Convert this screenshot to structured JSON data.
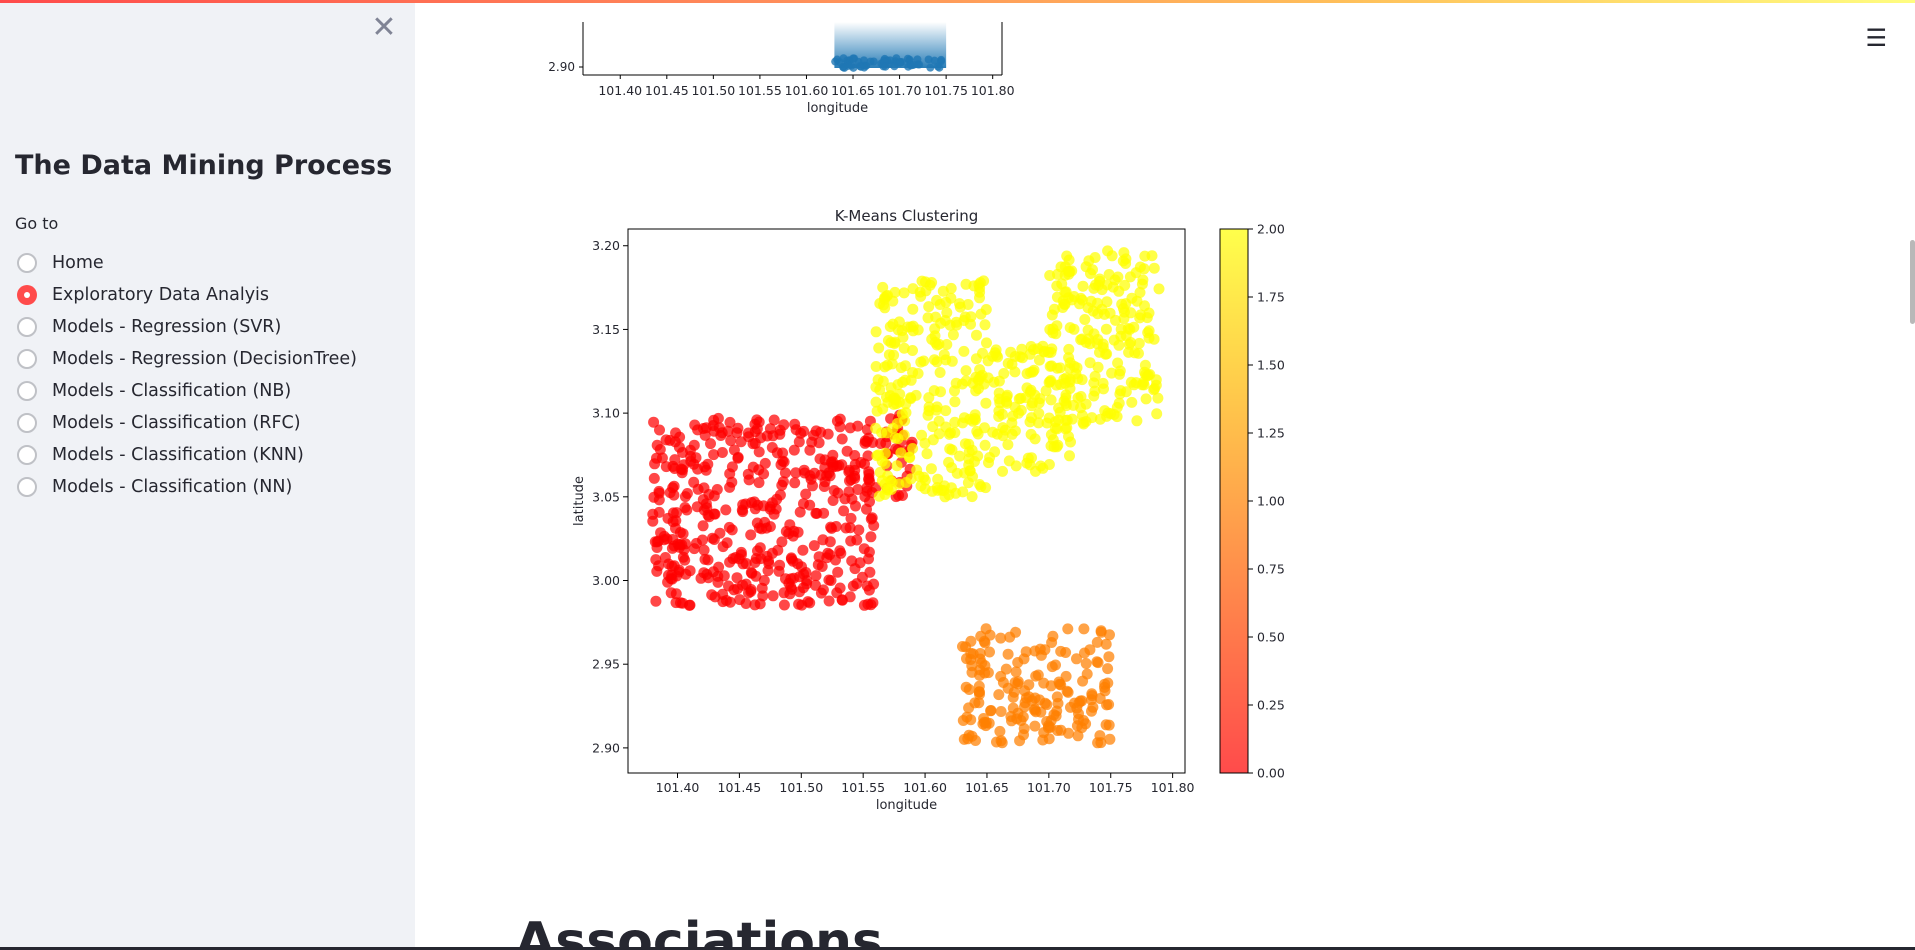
{
  "sidebar": {
    "title": "The Data Mining Process",
    "goto_label": "Go to",
    "options": [
      {
        "label": "Home",
        "selected": false
      },
      {
        "label": "Exploratory Data Analyis",
        "selected": true
      },
      {
        "label": "Models - Regression (SVR)",
        "selected": false
      },
      {
        "label": "Models - Regression (DecisionTree)",
        "selected": false
      },
      {
        "label": "Models - Classification (NB)",
        "selected": false
      },
      {
        "label": "Models - Classification (RFC)",
        "selected": false
      },
      {
        "label": "Models - Classification (KNN)",
        "selected": false
      },
      {
        "label": "Models - Classification (NN)",
        "selected": false
      }
    ],
    "close_icon": "close-icon"
  },
  "header": {
    "menu_icon": "hamburger-menu-icon"
  },
  "colors": {
    "accent": "#ff4b4b",
    "sidebar_bg": "#f0f2f6",
    "text": "#262730"
  },
  "chart_data": [
    {
      "type": "scatter",
      "partial": true,
      "ytick_visible": [
        "2.90"
      ],
      "x_ticks": [
        "101.40",
        "101.45",
        "101.50",
        "101.55",
        "101.60",
        "101.65",
        "101.70",
        "101.75",
        "101.80"
      ],
      "xlabel": "longitude",
      "color": "#1f77b4",
      "clusters": [
        {
          "x_range": [
            101.63,
            101.75
          ],
          "y_range": [
            2.9,
            2.93
          ],
          "color": "#1f77b4"
        }
      ]
    },
    {
      "type": "scatter",
      "title": "K-Means Clustering",
      "xlabel": "longitude",
      "ylabel": "latitude",
      "xlim": [
        101.36,
        101.81
      ],
      "ylim": [
        2.885,
        3.21
      ],
      "x_ticks": [
        "101.40",
        "101.45",
        "101.50",
        "101.55",
        "101.60",
        "101.65",
        "101.70",
        "101.75",
        "101.80"
      ],
      "y_ticks": [
        "2.90",
        "2.95",
        "3.00",
        "3.05",
        "3.10",
        "3.15",
        "3.20"
      ],
      "colormap": "autumn",
      "colorbar": {
        "min": 0.0,
        "max": 2.0,
        "ticks": [
          "0.00",
          "0.25",
          "0.50",
          "0.75",
          "1.00",
          "1.25",
          "1.50",
          "1.75",
          "2.00"
        ]
      },
      "clusters": [
        {
          "label": 0,
          "color": "#ff0000",
          "regions": [
            {
              "x_range": [
                101.38,
                101.56
              ],
              "y_range": [
                2.985,
                3.097
              ]
            },
            {
              "x_range": [
                101.55,
                101.59
              ],
              "y_range": [
                3.05,
                3.1
              ]
            }
          ]
        },
        {
          "label": 1,
          "color": "#ff8000",
          "regions": [
            {
              "x_range": [
                101.63,
                101.75
              ],
              "y_range": [
                2.903,
                2.972
              ]
            }
          ]
        },
        {
          "label": 2,
          "color": "#ffff00",
          "regions": [
            {
              "x_range": [
                101.56,
                101.62
              ],
              "y_range": [
                3.05,
                3.18
              ]
            },
            {
              "x_range": [
                101.62,
                101.65
              ],
              "y_range": [
                3.05,
                3.18
              ]
            },
            {
              "x_range": [
                101.65,
                101.72
              ],
              "y_range": [
                3.065,
                3.14
              ]
            },
            {
              "x_range": [
                101.7,
                101.79
              ],
              "y_range": [
                3.09,
                3.197
              ]
            }
          ]
        }
      ]
    }
  ],
  "main": {
    "section_heading": "Associations"
  }
}
